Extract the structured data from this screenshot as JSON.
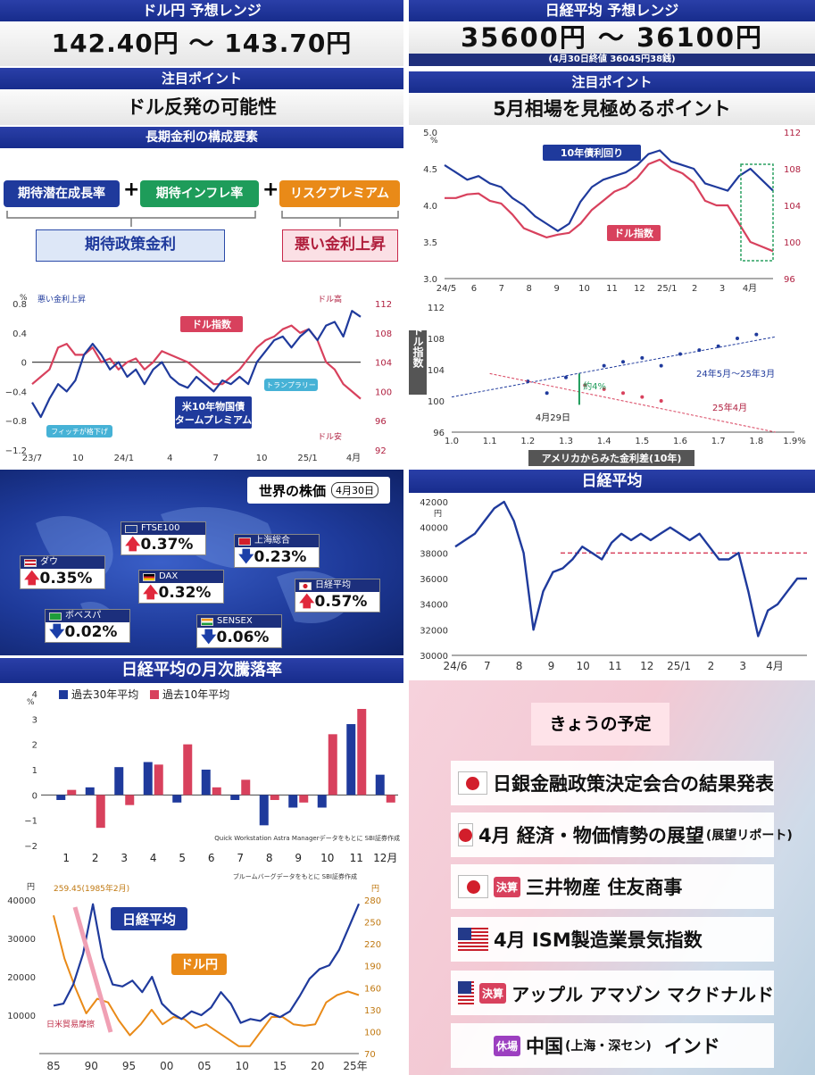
{
  "usdjpy_range": {
    "title": "ドル円 予想レンジ",
    "low": "142.40円",
    "high": "143.70円",
    "sep": "～"
  },
  "nikkei_range": {
    "title": "日経平均 予想レンジ",
    "low": "35600円",
    "high": "36100円",
    "sep": "～",
    "note": "(4月30日終値 36045円38銭)"
  },
  "focus_left": {
    "title": "注目ポイント",
    "text": "ドル反発の可能性"
  },
  "focus_right": {
    "title": "注目ポイント",
    "text": "5月相場を見極めるポイント"
  },
  "components": {
    "title": "長期金利の構成要素",
    "box1": "期待潜在成長率",
    "plus1": "+",
    "box2": "期待インフレ率",
    "plus2": "+",
    "box3": "リスクプレミアム",
    "out1": "期待政策金利",
    "out2": "悪い金利上昇"
  },
  "colors": {
    "blue": "#1f3a9c",
    "red": "#d8415d",
    "orange": "#e98a18",
    "green": "#1e9c5a",
    "dash": "#d8415d"
  },
  "chart_data": [
    {
      "id": "term_premium",
      "type": "line",
      "ylabel": "%",
      "y2label": "",
      "x_ticks": [
        "23/7",
        "10",
        "24/1",
        "4",
        "7",
        "10",
        "25/1",
        "4月"
      ],
      "y_ticks": [
        "0.8",
        "0.4",
        "0",
        "−0.4",
        "−0.8",
        "−1.2"
      ],
      "y2_ticks": [
        "112",
        "108",
        "104",
        "100",
        "96",
        "92"
      ],
      "ylim": [
        -1.2,
        0.8
      ],
      "y2lim": [
        92,
        112
      ],
      "annotations": [
        "悪い金利上昇",
        "ドル高",
        "ドル安",
        "ドル指数",
        "米10年物国債\nタームプレミアム",
        "フィッチが格下げ",
        "トランプラリー"
      ],
      "series": [
        {
          "name": "米10年物国債タームプレミアム",
          "values": [
            -0.55,
            -0.75,
            -0.5,
            -0.3,
            -0.4,
            -0.25,
            0.1,
            0.25,
            0.1,
            -0.1,
            0.0,
            -0.2,
            -0.1,
            -0.3,
            -0.1,
            0.0,
            -0.2,
            -0.3,
            -0.35,
            -0.2,
            -0.3,
            -0.4,
            -0.25,
            -0.3,
            -0.2,
            -0.3,
            0.0,
            0.15,
            0.3,
            0.35,
            0.2,
            0.35,
            0.45,
            0.3,
            0.5,
            0.55,
            0.35,
            0.7,
            0.62
          ]
        },
        {
          "name": "ドル指数",
          "values": [
            101,
            102,
            103,
            106,
            106.5,
            105,
            105,
            106,
            104,
            104.5,
            103,
            104,
            104.5,
            103,
            104,
            105.5,
            105,
            104.5,
            104,
            103,
            102,
            101,
            101,
            102,
            103,
            104.5,
            106,
            107,
            107.5,
            108.5,
            109,
            108,
            108.5,
            107,
            104,
            103,
            101,
            100,
            99
          ]
        }
      ]
    },
    {
      "id": "yield_vs_dollar",
      "type": "line",
      "ylabel": "%",
      "ylim": [
        3.0,
        5.0
      ],
      "y2lim": [
        96,
        112
      ],
      "y_ticks": [
        "5.0",
        "4.5",
        "4.0",
        "3.5",
        "3.0"
      ],
      "y2_ticks": [
        "112",
        "108",
        "104",
        "100",
        "96"
      ],
      "x_ticks": [
        "24/5",
        "6",
        "7",
        "8",
        "9",
        "10",
        "11",
        "12",
        "25/1",
        "2",
        "3",
        "4月"
      ],
      "series": [
        {
          "name": "10年債利回り",
          "values": [
            4.55,
            4.45,
            4.35,
            4.4,
            4.3,
            4.25,
            4.1,
            4.0,
            3.85,
            3.75,
            3.65,
            3.75,
            4.05,
            4.25,
            4.35,
            4.4,
            4.45,
            4.55,
            4.7,
            4.75,
            4.6,
            4.55,
            4.5,
            4.3,
            4.25,
            4.2,
            4.4,
            4.5,
            4.35,
            4.2
          ]
        },
        {
          "name": "ドル指数",
          "values": [
            104.8,
            104.8,
            105.2,
            105.3,
            104.5,
            104.2,
            103.0,
            101.5,
            101.0,
            100.5,
            100.8,
            101.0,
            102.0,
            103.5,
            104.5,
            105.5,
            106.0,
            107.0,
            108.5,
            109.0,
            108.0,
            107.5,
            106.5,
            104.5,
            104.0,
            104.0,
            102.0,
            100.0,
            99.5,
            99.0
          ]
        }
      ],
      "annotations": [
        "10年債利回り",
        "ドル指数"
      ]
    },
    {
      "id": "scatter_rate_diff",
      "type": "scatter",
      "xlabel": "アメリカからみた金利差(10年)",
      "ylabel": "ドル指数",
      "x_ticks": [
        "1.0",
        "1.1",
        "1.2",
        "1.3",
        "1.4",
        "1.5",
        "1.6",
        "1.7",
        "1.8",
        "1.9%"
      ],
      "y_ticks": [
        "112",
        "108",
        "104",
        "100",
        "96"
      ],
      "xlim": [
        1.0,
        1.9
      ],
      "ylim": [
        96,
        112
      ],
      "series": [
        {
          "name": "24年5月～25年3月",
          "points": [
            [
              1.2,
              102.5
            ],
            [
              1.25,
              101
            ],
            [
              1.3,
              103
            ],
            [
              1.35,
              102
            ],
            [
              1.4,
              104.5
            ],
            [
              1.45,
              105
            ],
            [
              1.5,
              105.5
            ],
            [
              1.55,
              104.5
            ],
            [
              1.6,
              106
            ],
            [
              1.65,
              106.5
            ],
            [
              1.7,
              107
            ],
            [
              1.75,
              108
            ],
            [
              1.8,
              108.5
            ]
          ]
        },
        {
          "name": "25年4月",
          "points": [
            [
              1.35,
              102
            ],
            [
              1.4,
              101.5
            ],
            [
              1.45,
              101
            ],
            [
              1.5,
              100.5
            ],
            [
              1.55,
              100
            ]
          ]
        }
      ],
      "annotations": [
        "24年5月～25年3月",
        "25年4月",
        "約4%",
        "4月29日"
      ]
    },
    {
      "id": "world_stocks",
      "type": "table",
      "title": "世界の株価",
      "date": "4月30日",
      "rows": [
        {
          "name": "FTSE100",
          "value": "0.37%",
          "dir": "up"
        },
        {
          "name": "上海総合",
          "value": "0.23%",
          "dir": "down"
        },
        {
          "name": "ダウ",
          "value": "0.35%",
          "dir": "up"
        },
        {
          "name": "DAX",
          "value": "0.32%",
          "dir": "up"
        },
        {
          "name": "日経平均",
          "value": "0.57%",
          "dir": "up"
        },
        {
          "name": "ボベスパ",
          "value": "0.02%",
          "dir": "down"
        },
        {
          "name": "SENSEX",
          "value": "0.06%",
          "dir": "down"
        }
      ]
    },
    {
      "id": "nikkei",
      "type": "line",
      "title": "日経平均",
      "ylabel": "円",
      "ylim": [
        30000,
        42000
      ],
      "y_ticks": [
        "42000",
        "40000",
        "38000",
        "36000",
        "34000",
        "32000",
        "30000"
      ],
      "x_ticks": [
        "24/6",
        "7",
        "8",
        "9",
        "10",
        "11",
        "12",
        "25/1",
        "2",
        "3",
        "4月"
      ],
      "reference": 38000,
      "series": [
        {
          "name": "日経平均",
          "values": [
            38500,
            39000,
            39500,
            40500,
            41500,
            42000,
            40500,
            38000,
            32000,
            35000,
            36500,
            36800,
            37500,
            38500,
            38000,
            37500,
            38800,
            39500,
            39000,
            39500,
            39000,
            39500,
            40000,
            39500,
            39000,
            39500,
            38500,
            37500,
            37500,
            38000,
            35000,
            31500,
            33500,
            34000,
            35000,
            36000,
            36000
          ]
        }
      ]
    },
    {
      "id": "monthly",
      "type": "bar",
      "title": "日経平均の月次騰落率",
      "ylabel": "%",
      "categories": [
        "1",
        "2",
        "3",
        "4",
        "5",
        "6",
        "7",
        "8",
        "9",
        "10",
        "11",
        "12月"
      ],
      "ylim": [
        -2,
        4
      ],
      "y_ticks": [
        "4",
        "3",
        "2",
        "1",
        "0",
        "−1",
        "−2"
      ],
      "series": [
        {
          "name": "過去30年平均",
          "values": [
            -0.2,
            0.3,
            1.1,
            1.3,
            -0.3,
            1.0,
            -0.2,
            -1.2,
            -0.5,
            -0.5,
            2.8,
            0.8
          ]
        },
        {
          "name": "過去10年平均",
          "values": [
            0.2,
            -1.3,
            -0.4,
            1.2,
            2.0,
            0.3,
            0.6,
            -0.2,
            -0.3,
            2.4,
            3.4,
            -0.3
          ]
        }
      ],
      "source": "Quick Workstation Astra Managerデータをもとに SBI証券作成"
    },
    {
      "id": "longterm",
      "type": "line",
      "ylabel": "円",
      "y2label": "円",
      "ylim": [
        0,
        40000
      ],
      "y2lim": [
        70,
        280
      ],
      "y_ticks": [
        "40000",
        "30000",
        "20000",
        "10000"
      ],
      "y2_ticks": [
        "280",
        "250",
        "220",
        "190",
        "160",
        "130",
        "100",
        "70"
      ],
      "x_ticks": [
        "85",
        "90",
        "95",
        "00",
        "05",
        "10",
        "15",
        "20",
        "25年"
      ],
      "annotations": [
        "259.45(1985年2月)",
        "日経平均",
        "ドル円",
        "日米貿易摩擦"
      ],
      "source": "ブルームバーグデータをもとに SBI証券作成",
      "series": [
        {
          "name": "日経平均",
          "values": [
            12500,
            13000,
            18000,
            26000,
            38900,
            25000,
            18000,
            17500,
            19000,
            16000,
            20000,
            13000,
            10500,
            9000,
            11000,
            10000,
            12000,
            16000,
            13000,
            8000,
            9000,
            8500,
            10500,
            9500,
            11000,
            15000,
            19500,
            22000,
            23000,
            27000,
            33000,
            39000
          ]
        },
        {
          "name": "ドル円",
          "values": [
            259,
            200,
            160,
            125,
            145,
            140,
            115,
            95,
            110,
            130,
            110,
            120,
            117,
            105,
            110,
            100,
            90,
            80,
            80,
            100,
            120,
            120,
            110,
            108,
            110,
            140,
            150,
            155,
            150
          ]
        }
      ]
    }
  ],
  "schedule": {
    "title": "きょうの予定",
    "items": [
      {
        "flag": "jp",
        "tag": "",
        "text": "日銀金融政策決定会合の結果発表"
      },
      {
        "flag": "jp",
        "tag": "",
        "text": "4月 経済・物価情勢の展望",
        "small": "(展望リポート)"
      },
      {
        "flag": "jp",
        "tag": "決算",
        "text": "三井物産 住友商事"
      },
      {
        "flag": "us",
        "tag": "",
        "text": "4月 ISM製造業景気指数"
      },
      {
        "flag": "us",
        "tag": "決算",
        "text": "アップル アマゾン マクドナルド"
      },
      {
        "flag": "",
        "tag": "休場",
        "text": "中国",
        "small": "(上海・深セン)",
        "tail": "インド"
      }
    ]
  }
}
